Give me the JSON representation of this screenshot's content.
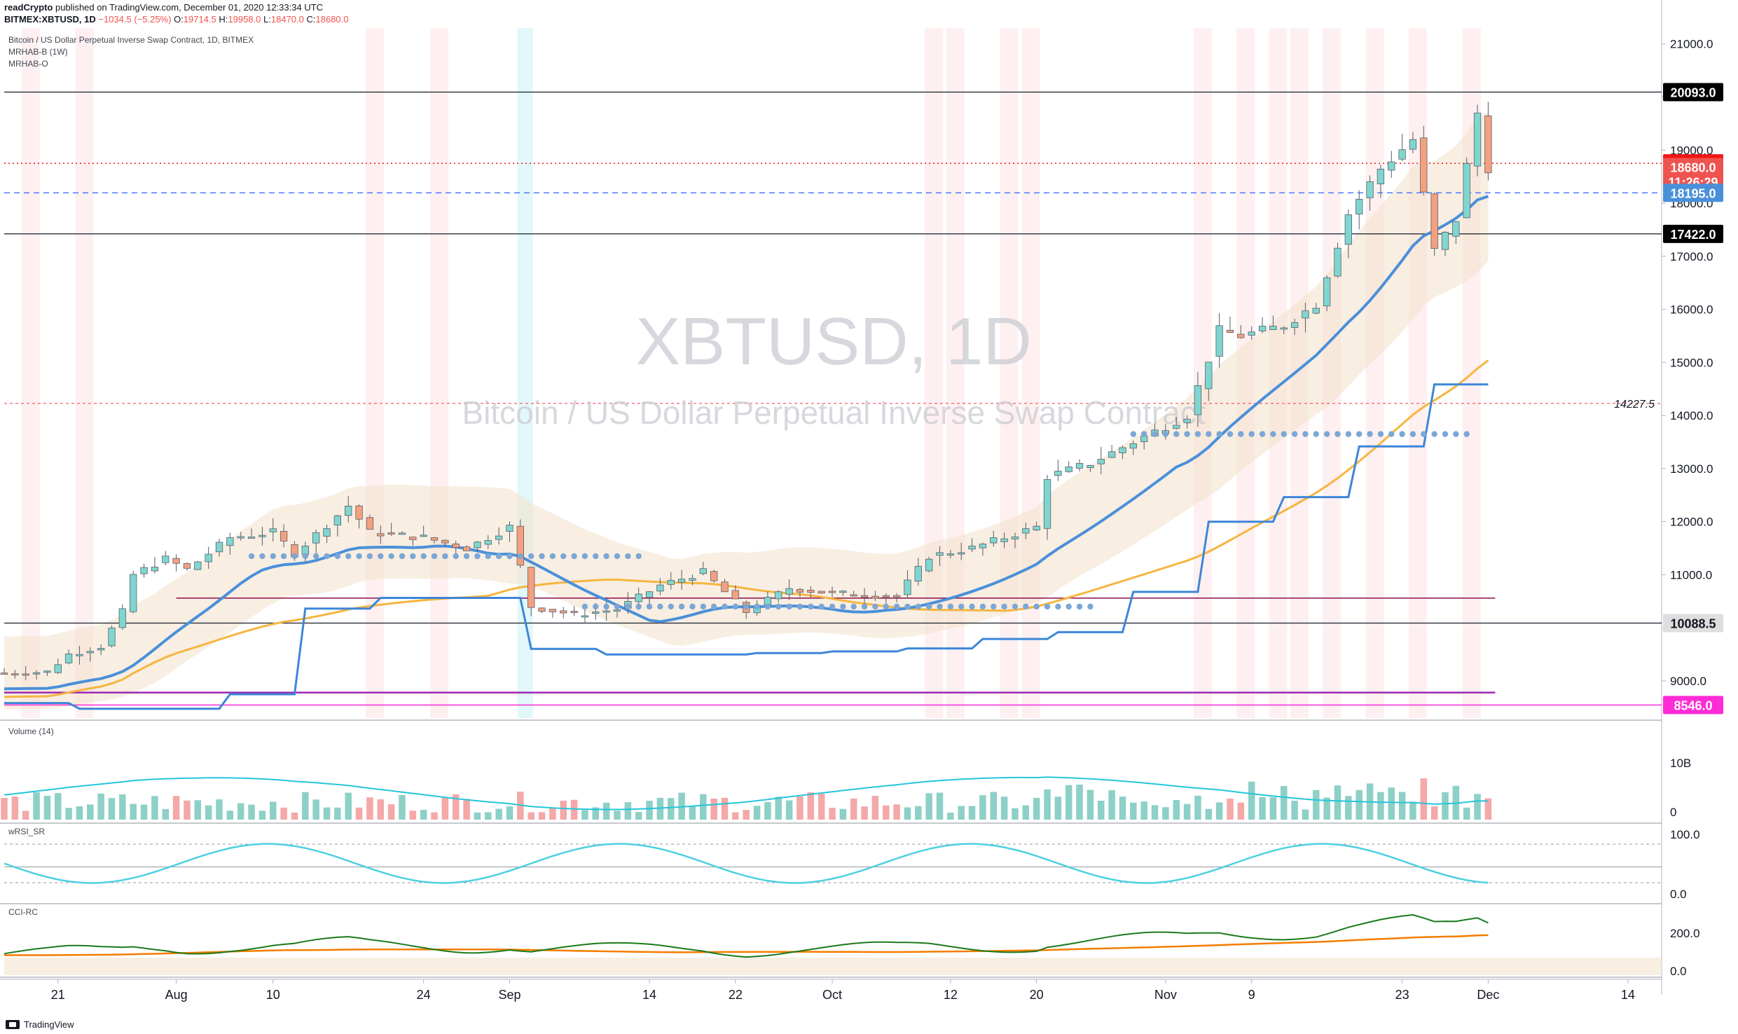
{
  "header": {
    "publisher": "readCrypto",
    "published_line": "published on TradingView.com, December 01, 2020 12:33:34 UTC",
    "symbol_line": "BITMEX:XBTUSD, 1D",
    "ohlc": {
      "change": "−1034.5 (−5.25%)",
      "open_label": "O:",
      "open": "19714.5",
      "high_label": "H:",
      "high": "19958.0",
      "low_label": "L:",
      "low": "18470.0",
      "close_label": "C:",
      "close": "18680.0"
    }
  },
  "main_legend": {
    "title": "Bitcoin / US Dollar Perpetual Inverse Swap Contract, 1D, BITMEX",
    "indicator_1": "MRHAB-B (1W)",
    "indicator_2": "MRHAB-O"
  },
  "watermark": {
    "symbol": "XBTUSD, 1D",
    "description": "Bitcoin / US Dollar Perpetual Inverse Swap Contract"
  },
  "panes": {
    "volume_label": "Volume (14)",
    "wrsi_label": "wRSI_SR",
    "cci_label": "CCI-RC"
  },
  "footer": {
    "brand": "TradingView"
  },
  "colors": {
    "up": "#26a69a",
    "down": "#ef5350",
    "blue": "#4a90d9",
    "orange": "#f6b540",
    "band": "#f4e3cf",
    "magenta": "#e040fb",
    "maroon": "#880e4f"
  },
  "chart_data": {
    "type": "candlestick",
    "price_axis": {
      "ticks": [
        9000,
        10000,
        11000,
        12000,
        13000,
        14000,
        15000,
        16000,
        17000,
        18000,
        19000,
        20000,
        21000
      ],
      "tick_labels": [
        "9000.0",
        "10000.0",
        "11000.0",
        "12000.0",
        "13000.0",
        "14000.0",
        "15000.0",
        "16000.0",
        "17000.0",
        "18000.0",
        "19000.0",
        "20000.0",
        "21000.0"
      ],
      "range": [
        8300,
        21300
      ]
    },
    "time_axis": {
      "start_date": "2020-07-16",
      "end_date": "2020-12-17",
      "labels": [
        {
          "text": "21",
          "date": "2020-07-21"
        },
        {
          "text": "Aug",
          "date": "2020-08-01"
        },
        {
          "text": "10",
          "date": "2020-08-10"
        },
        {
          "text": "24",
          "date": "2020-08-24"
        },
        {
          "text": "Sep",
          "date": "2020-09-01"
        },
        {
          "text": "14",
          "date": "2020-09-14"
        },
        {
          "text": "22",
          "date": "2020-09-22"
        },
        {
          "text": "Oct",
          "date": "2020-10-01"
        },
        {
          "text": "12",
          "date": "2020-10-12"
        },
        {
          "text": "20",
          "date": "2020-10-20"
        },
        {
          "text": "Nov",
          "date": "2020-11-01"
        },
        {
          "text": "9",
          "date": "2020-11-09"
        },
        {
          "text": "23",
          "date": "2020-11-23"
        },
        {
          "text": "Dec",
          "date": "2020-12-01"
        },
        {
          "text": "14",
          "date": "2020-12-14"
        }
      ]
    },
    "price_tags": [
      {
        "value": 20093.0,
        "text": "20093.0",
        "color": "#000000"
      },
      {
        "value": 18751.0,
        "text": "18751.0",
        "color": "#f21515"
      },
      {
        "value": 18680.0,
        "text": "18680.0",
        "color": "#ef5350"
      },
      {
        "value": 18400.0,
        "text": "11:26:29",
        "color": "#ef5350"
      },
      {
        "value": 18195.0,
        "text": "18195.0",
        "color": "#4a90d9"
      },
      {
        "value": 17422.0,
        "text": "17422.0",
        "color": "#000000"
      },
      {
        "value": 10088.5,
        "text": "10088.5",
        "color": "#dedede"
      },
      {
        "value": 8546.0,
        "text": "8546.0",
        "color": "#ff2bd6"
      }
    ],
    "level_label": {
      "value": 14227.5,
      "text": "14227.5"
    },
    "horizontal_lines": [
      20093.0,
      17422.0,
      10088.5
    ],
    "close_path": [
      [
        "2020-07-16",
        9150
      ],
      [
        "2020-07-20",
        9170
      ],
      [
        "2020-07-22",
        9500
      ],
      [
        "2020-07-25",
        9650
      ],
      [
        "2020-07-27",
        10300
      ],
      [
        "2020-07-28",
        11000
      ],
      [
        "2020-07-31",
        11300
      ],
      [
        "2020-08-02",
        11100
      ],
      [
        "2020-08-06",
        11700
      ],
      [
        "2020-08-10",
        11800
      ],
      [
        "2020-08-12",
        11400
      ],
      [
        "2020-08-17",
        12300
      ],
      [
        "2020-08-19",
        11800
      ],
      [
        "2020-08-24",
        11700
      ],
      [
        "2020-08-28",
        11500
      ],
      [
        "2020-09-01",
        11900
      ],
      [
        "2020-09-03",
        10400
      ],
      [
        "2020-09-07",
        10250
      ],
      [
        "2020-09-11",
        10350
      ],
      [
        "2020-09-15",
        10800
      ],
      [
        "2020-09-19",
        11050
      ],
      [
        "2020-09-23",
        10300
      ],
      [
        "2020-09-27",
        10750
      ],
      [
        "2020-10-01",
        10650
      ],
      [
        "2020-10-07",
        10600
      ],
      [
        "2020-10-10",
        11350
      ],
      [
        "2020-10-14",
        11500
      ],
      [
        "2020-10-20",
        11900
      ],
      [
        "2020-10-21",
        12850
      ],
      [
        "2020-10-25",
        13100
      ],
      [
        "2020-10-28",
        13400
      ],
      [
        "2020-10-30",
        13600
      ],
      [
        "2020-11-03",
        14000
      ],
      [
        "2020-11-06",
        15600
      ],
      [
        "2020-11-08",
        15500
      ],
      [
        "2020-11-12",
        15700
      ],
      [
        "2020-11-15",
        16100
      ],
      [
        "2020-11-18",
        17800
      ],
      [
        "2020-11-21",
        18650
      ],
      [
        "2020-11-24",
        19200
      ],
      [
        "2020-11-26",
        17100
      ],
      [
        "2020-11-28",
        17700
      ],
      [
        "2020-11-30",
        19700
      ],
      [
        "2020-12-01",
        18680
      ]
    ],
    "volume_axis": {
      "labels": [
        "10B",
        "0"
      ]
    },
    "wrsi_axis": {
      "labels": [
        "100.0",
        "0.0"
      ]
    },
    "cci_axis": {
      "labels": [
        "200.0",
        "0.0"
      ]
    }
  }
}
